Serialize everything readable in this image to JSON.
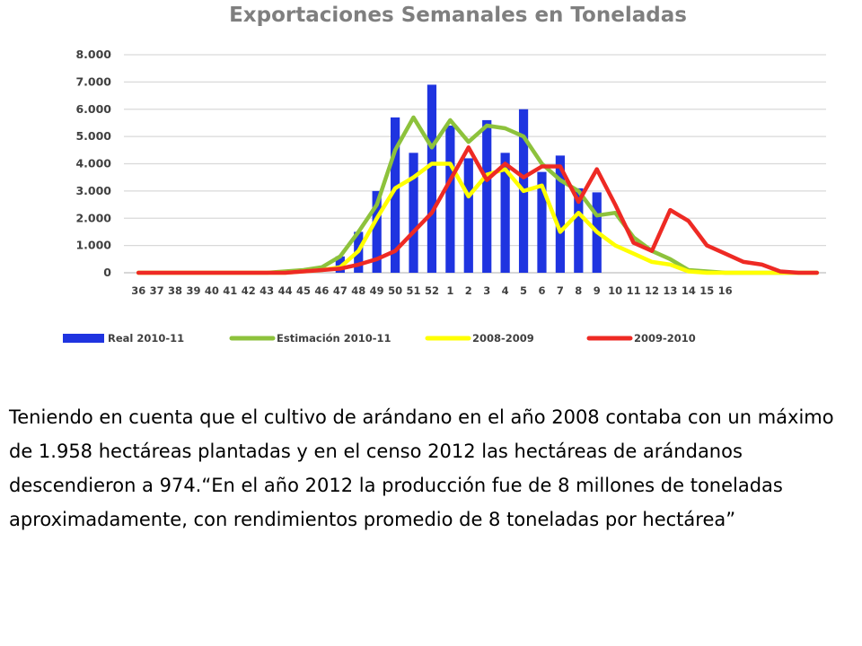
{
  "chart_data": {
    "type": "bar",
    "title": "Exportaciones Semanales en Toneladas",
    "xlabel": "",
    "ylabel": "",
    "ylim": [
      0,
      8000
    ],
    "yticks": [
      "0",
      "1.000",
      "2.000",
      "3.000",
      "4.000",
      "5.000",
      "6.000",
      "7.000",
      "8.000"
    ],
    "categories": [
      "36",
      "37",
      "38",
      "39",
      "40",
      "41",
      "42",
      "43",
      "44",
      "45",
      "46",
      "47",
      "48",
      "49",
      "50",
      "51",
      "52",
      "1",
      "2",
      "3",
      "4",
      "5",
      "6",
      "7",
      "8",
      "9",
      "10",
      "11",
      "12",
      "13",
      "14",
      "15",
      "16",
      "",
      "",
      "",
      "",
      ""
    ],
    "grid": true,
    "legend_position": "bottom",
    "colors": {
      "real": "#1f34e0",
      "estimacion": "#8dc23c",
      "y2008": "#ffff00",
      "y2009": "#ee2a24",
      "grid": "#d9d9d9",
      "axis": "#bfbfbf"
    },
    "series": [
      {
        "name": "Real 2010-11",
        "kind": "bar",
        "values": [
          0,
          0,
          0,
          0,
          0,
          0,
          0,
          0,
          0,
          0,
          0,
          600,
          1500,
          3000,
          5700,
          4400,
          6900,
          5400,
          4200,
          5600,
          4400,
          6000,
          3700,
          4300,
          3100,
          2950,
          0,
          0,
          0,
          0,
          0,
          0,
          0,
          0,
          0,
          0,
          0,
          0
        ]
      },
      {
        "name": "Estimación 2010-11",
        "kind": "line",
        "values": [
          0,
          0,
          0,
          0,
          0,
          0,
          0,
          0,
          50,
          100,
          200,
          600,
          1500,
          2500,
          4500,
          5700,
          4600,
          5600,
          4800,
          5400,
          5300,
          5000,
          4000,
          3400,
          3000,
          2100,
          2200,
          1300,
          800,
          500,
          100,
          50,
          0,
          0,
          0,
          0,
          0,
          0
        ]
      },
      {
        "name": "2008-2009",
        "kind": "line",
        "values": [
          0,
          0,
          0,
          0,
          0,
          0,
          0,
          0,
          0,
          50,
          100,
          200,
          800,
          2000,
          3100,
          3500,
          4000,
          4000,
          2800,
          3600,
          3800,
          3000,
          3200,
          1500,
          2200,
          1500,
          1000,
          700,
          400,
          300,
          50,
          0,
          0,
          0,
          0,
          0,
          0,
          0
        ]
      },
      {
        "name": "2009-2010",
        "kind": "line",
        "values": [
          0,
          0,
          0,
          0,
          0,
          0,
          0,
          0,
          0,
          50,
          100,
          150,
          300,
          500,
          800,
          1500,
          2200,
          3400,
          4600,
          3400,
          4000,
          3500,
          3900,
          3900,
          2600,
          3800,
          2500,
          1100,
          800,
          2300,
          1900,
          1000,
          700,
          400,
          300,
          50,
          0,
          0
        ]
      }
    ]
  },
  "body_text": "Teniendo en cuenta que el cultivo de arándano en el año 2008 contaba con un máximo de 1.958 hectáreas plantadas y en el censo 2012 las hectáreas de arándanos descendieron a 974.“En el año 2012 la producción fue de 8 millones de toneladas aproximadamente, con rendimientos promedio de 8 toneladas por hectárea”"
}
